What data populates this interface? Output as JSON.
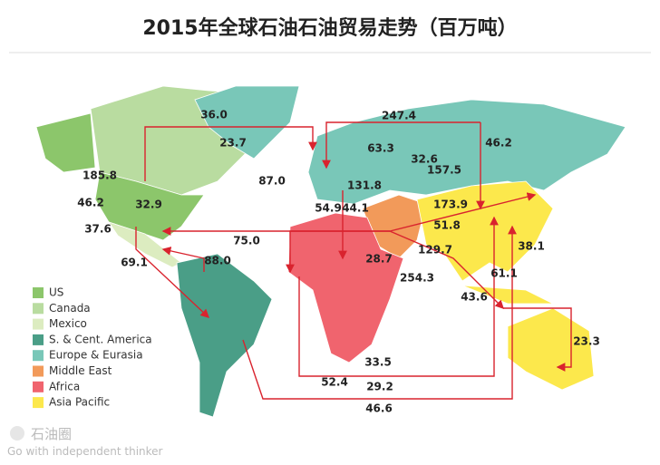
{
  "header": {
    "title": "2015年全球石油石油贸易走势（百万吨）"
  },
  "legend": [
    {
      "label": "US",
      "color": "#8cc66b"
    },
    {
      "label": "Canada",
      "color": "#b9dca0"
    },
    {
      "label": "Mexico",
      "color": "#dcecc0"
    },
    {
      "label": "S. & Cent. America",
      "color": "#4a9e87"
    },
    {
      "label": "Europe & Eurasia",
      "color": "#79c7b8"
    },
    {
      "label": "Middle East",
      "color": "#f29a5a"
    },
    {
      "label": "Africa",
      "color": "#f0646e"
    },
    {
      "label": "Asia Pacific",
      "color": "#fce84c"
    }
  ],
  "flows": [
    "36.0",
    "23.7",
    "247.4",
    "46.2",
    "63.3",
    "32.6",
    "157.5",
    "87.0",
    "131.8",
    "185.8",
    "46.2",
    "32.9",
    "54.9",
    "44.1",
    "173.9",
    "37.6",
    "75.0",
    "51.8",
    "38.1",
    "88.0",
    "69.1",
    "28.7",
    "129.7",
    "254.3",
    "61.1",
    "43.6",
    "23.3",
    "33.5",
    "52.4",
    "29.2",
    "46.6"
  ],
  "watermark": {
    "name": "石油圈",
    "slogan": "Go with independent thinker"
  }
}
